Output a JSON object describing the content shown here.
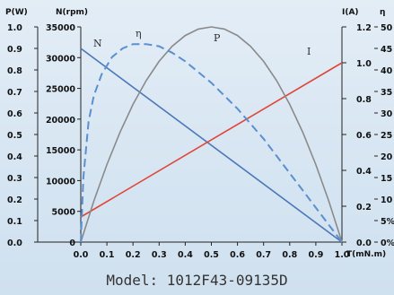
{
  "chart_data": {
    "type": "line",
    "x_axis": {
      "label": "T(mN.m)",
      "ticks": [
        "0.0",
        "0.1",
        "0.2",
        "0.3",
        "0.4",
        "0.5",
        "0.6",
        "0.7",
        "0.8",
        "0.9",
        "1.0"
      ],
      "range": [
        0,
        1.0
      ]
    },
    "y_axes": {
      "power": {
        "title": "P(W)",
        "range": [
          0,
          1.0
        ],
        "ticks": [
          "1.0",
          "0.9",
          "0.8",
          "0.7",
          "0.6",
          "0.5",
          "0.4",
          "0.3",
          "0.2",
          "0.1",
          "0.0"
        ]
      },
      "speed": {
        "title": "N(rpm)",
        "range": [
          0,
          35000
        ],
        "ticks": [
          "35000",
          "30000",
          "25000",
          "20000",
          "15000",
          "10000",
          "5000",
          "0"
        ]
      },
      "current": {
        "title": "I(A)",
        "range": [
          0,
          1.2
        ],
        "ticks": [
          "1.2",
          "1.0",
          "0.8",
          "0.6",
          "0.4",
          "0.2",
          "0.0"
        ]
      },
      "efficiency": {
        "title": "η",
        "range": [
          0,
          50
        ],
        "ticks": [
          "50",
          "45",
          "40",
          "35",
          "30",
          "25",
          "20",
          "15",
          "10",
          "5%",
          "0%"
        ]
      }
    },
    "series": [
      {
        "name": "N",
        "axis": "speed",
        "color": "#4a78b8",
        "style": "solid",
        "x": [
          0,
          1.0
        ],
        "y": [
          31500,
          0
        ]
      },
      {
        "name": "I",
        "axis": "current",
        "color": "#e0463a",
        "style": "solid",
        "x": [
          0,
          1.0
        ],
        "y": [
          0.14,
          1.0
        ]
      },
      {
        "name": "P",
        "axis": "power",
        "color": "#8a8a8a",
        "style": "solid",
        "x": [
          0,
          0.05,
          0.1,
          0.15,
          0.2,
          0.25,
          0.3,
          0.35,
          0.4,
          0.45,
          0.5,
          0.55,
          0.6,
          0.65,
          0.7,
          0.75,
          0.8,
          0.85,
          0.9,
          0.95,
          1.0
        ],
        "y": [
          0,
          0.19,
          0.36,
          0.51,
          0.64,
          0.75,
          0.84,
          0.91,
          0.96,
          0.99,
          1.0,
          0.99,
          0.96,
          0.91,
          0.84,
          0.75,
          0.64,
          0.51,
          0.36,
          0.19,
          0
        ]
      },
      {
        "name": "η",
        "axis": "efficiency",
        "color": "#5a8fd0",
        "style": "dashed",
        "x": [
          0,
          0.01,
          0.03,
          0.05,
          0.08,
          0.12,
          0.16,
          0.2,
          0.25,
          0.3,
          0.35,
          0.4,
          0.45,
          0.5,
          0.55,
          0.6,
          0.65,
          0.7,
          0.75,
          0.8,
          0.85,
          0.9,
          0.95,
          1.0
        ],
        "y": [
          0,
          15,
          28,
          34,
          39,
          43,
          45,
          46,
          46,
          45.5,
          44,
          42,
          39.5,
          37,
          34,
          31,
          27.5,
          24,
          20,
          16,
          12,
          8,
          4,
          0
        ]
      }
    ],
    "curve_labels": [
      "N",
      "η",
      "P",
      "I"
    ],
    "grid": false
  },
  "footer": {
    "model_text": "Model:  1012F43-09135D"
  }
}
